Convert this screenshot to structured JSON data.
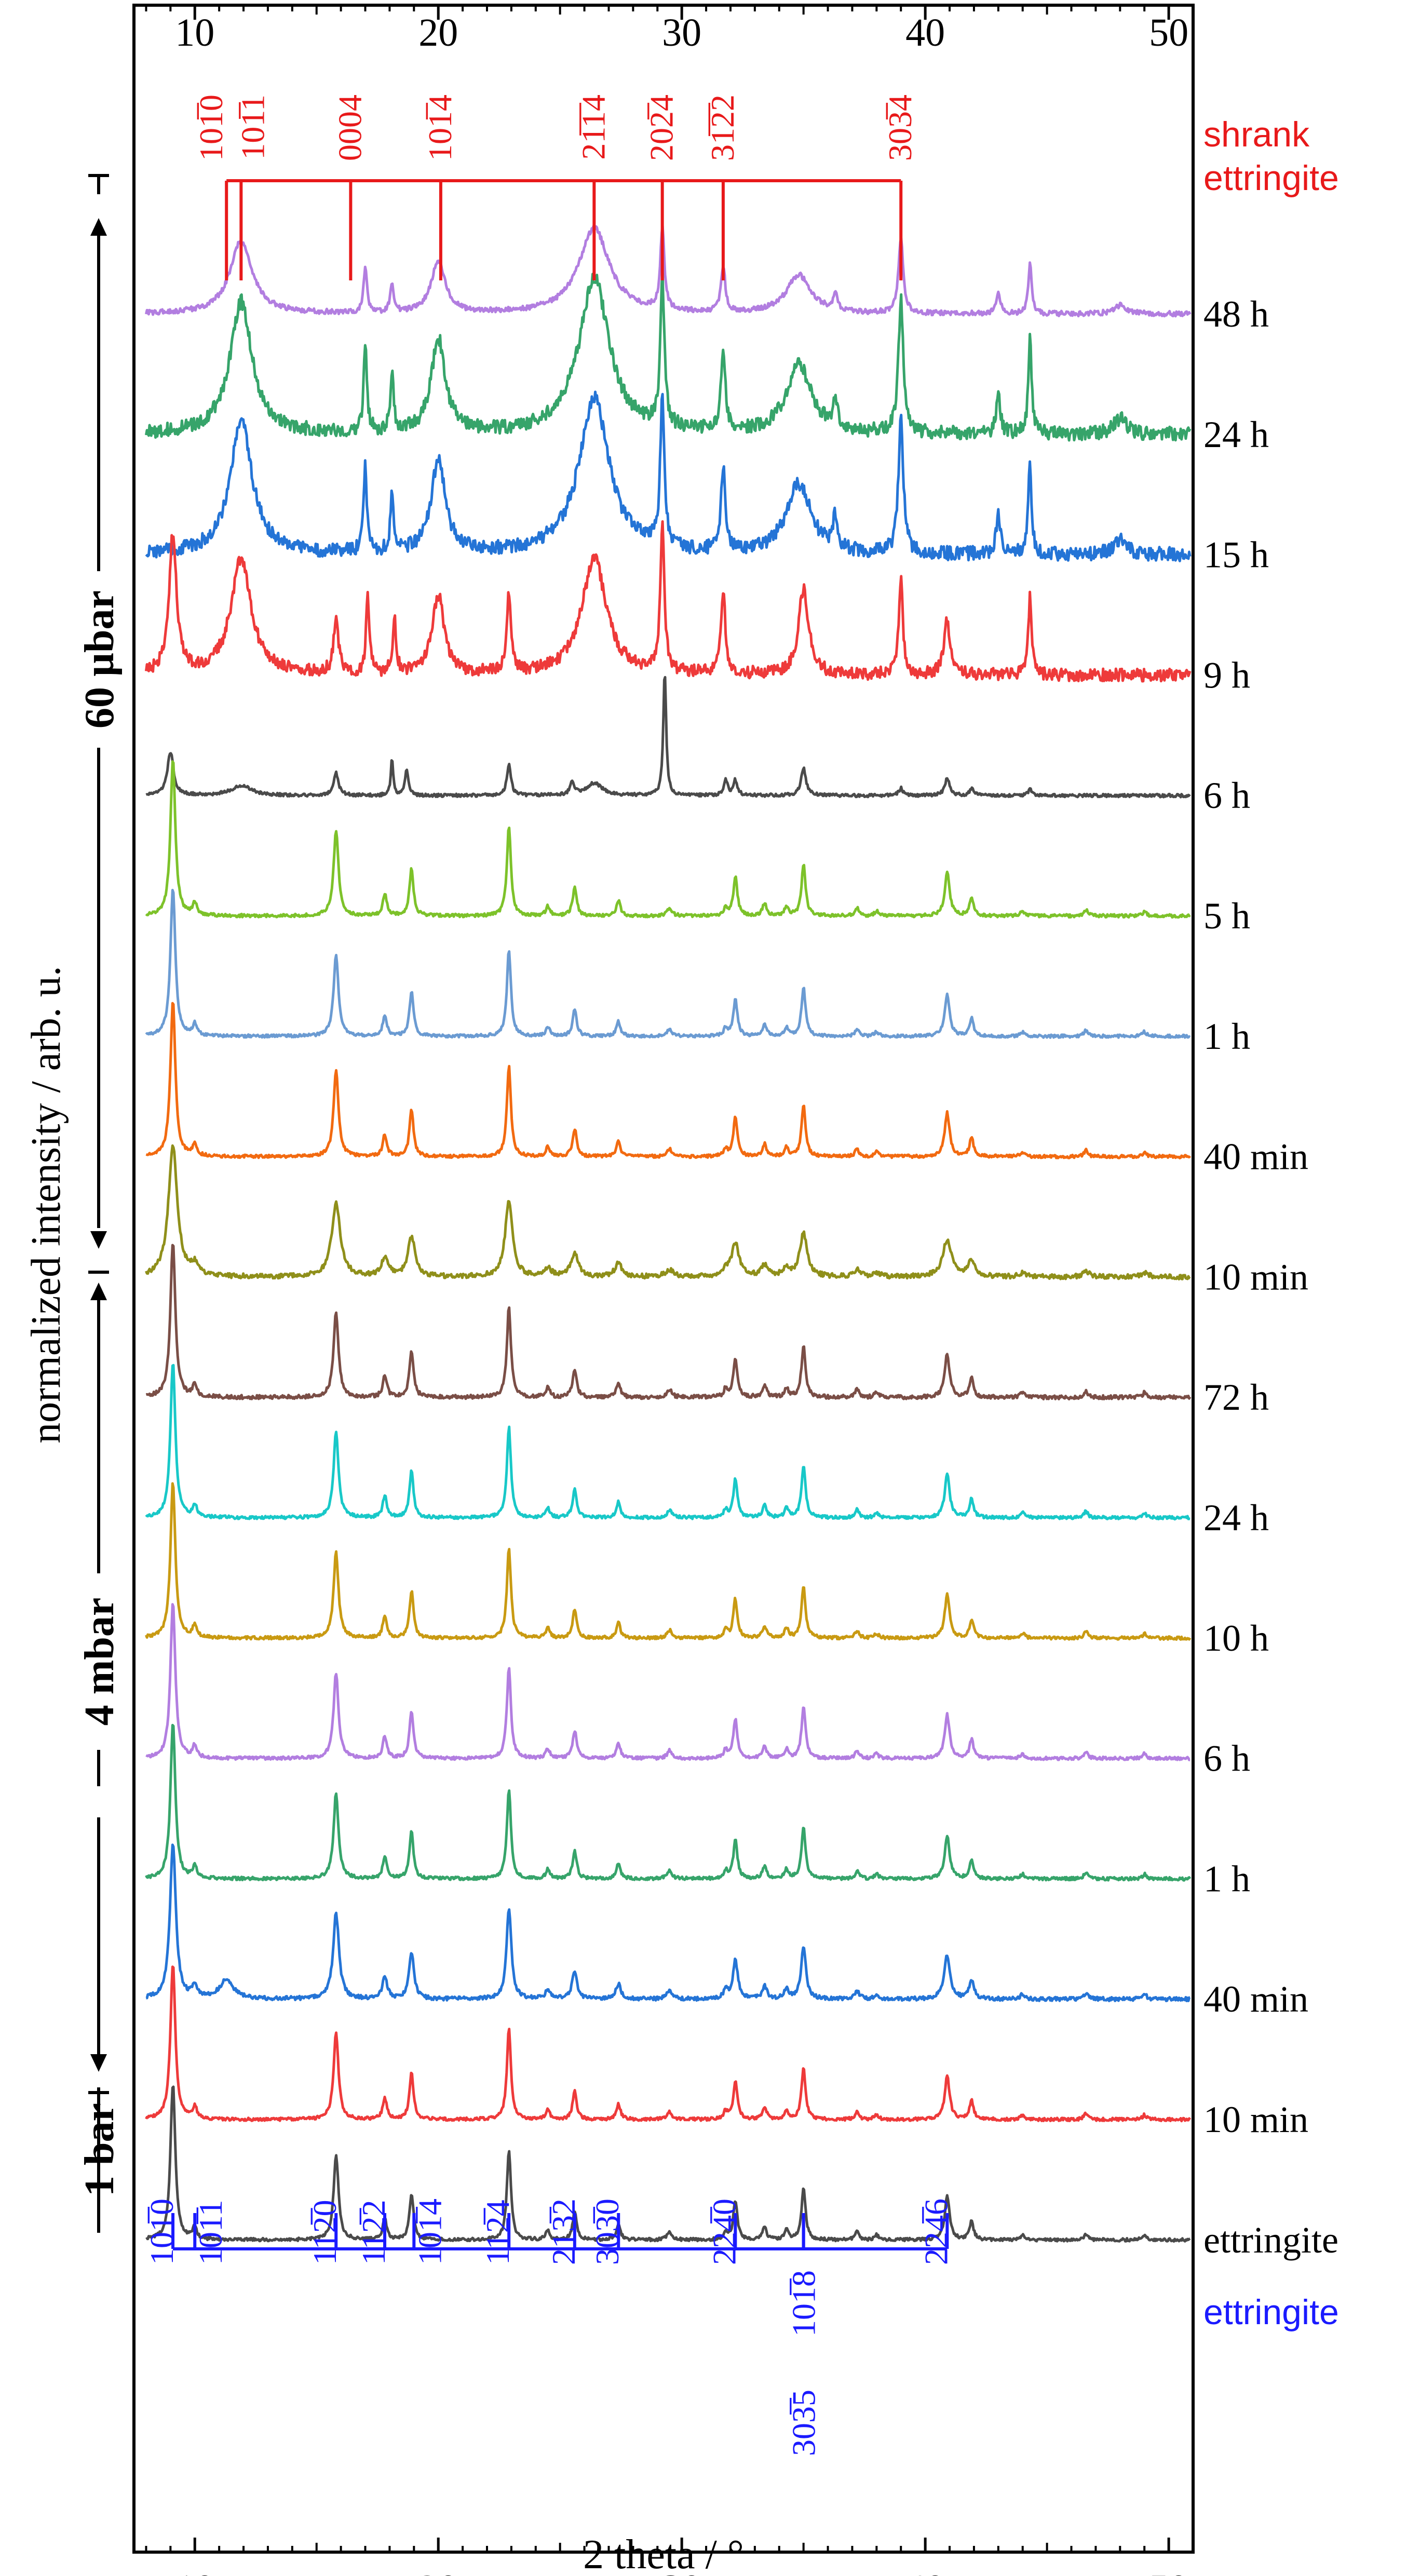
{
  "chart_data": {
    "type": "line",
    "xlabel": "2 theta / °",
    "ylabel": "normalized intensity / arb. u.",
    "xlim": [
      7.5,
      51
    ],
    "x_ticks": [
      10,
      20,
      30,
      40,
      50
    ],
    "x_tick_labels": [
      "10",
      "20",
      "30",
      "40",
      "50"
    ],
    "pressure_labels": [
      {
        "text": "60 µbar",
        "range_from": "10 min",
        "range_to": "48 h"
      },
      {
        "text": "4 mbar",
        "range_from": "72 h",
        "range_to": "10 min"
      },
      {
        "text": "1 bar",
        "range_from": "10 min",
        "range_to": "10 min"
      }
    ],
    "series": [
      {
        "name": "48 h",
        "color": "#b27ee0",
        "group": "60 µbar",
        "profile": "shrunk",
        "scale": 0.55,
        "noise": 0.06
      },
      {
        "name": "24 h",
        "color": "#36a46a",
        "group": "60 µbar",
        "profile": "shrunk",
        "scale": 1.0,
        "noise": 0.09
      },
      {
        "name": "15 h",
        "color": "#2474d6",
        "group": "60 µbar",
        "profile": "shrunk",
        "scale": 1.0,
        "noise": 0.09
      },
      {
        "name": "9 h",
        "color": "#ee3a3a",
        "group": "60 µbar",
        "profile": "mixed",
        "scale": 1.0,
        "noise": 0.08
      },
      {
        "name": "6 h",
        "color": "#4a4a4a",
        "group": "60 µbar",
        "profile": "six",
        "scale": 0.8,
        "noise": 0.025
      },
      {
        "name": "5 h",
        "color": "#7dc22a",
        "group": "60 µbar",
        "profile": "ett",
        "scale": 1.0,
        "noise": 0.02
      },
      {
        "name": "1 h",
        "color": "#6b9bd2",
        "group": "60 µbar",
        "profile": "ett",
        "scale": 0.95,
        "noise": 0.02
      },
      {
        "name": "40 min",
        "color": "#f26a10",
        "group": "60 µbar",
        "profile": "ett",
        "scale": 1.0,
        "noise": 0.02
      },
      {
        "name": "10 min",
        "color": "#8f8f1a",
        "group": "60 µbar",
        "profile": "ett_broad",
        "scale": 1.0,
        "noise": 0.03
      },
      {
        "name": "72 h",
        "color": "#7a4e46",
        "group": "4 mbar",
        "profile": "ett",
        "scale": 1.0,
        "noise": 0.025
      },
      {
        "name": "24 h",
        "color": "#18c8c8",
        "group": "4 mbar",
        "profile": "ett",
        "scale": 1.0,
        "noise": 0.02
      },
      {
        "name": "10 h",
        "color": "#c99a12",
        "group": "4 mbar",
        "profile": "ett",
        "scale": 1.0,
        "noise": 0.02
      },
      {
        "name": "6 h",
        "color": "#b27ee0",
        "group": "4 mbar",
        "profile": "ett",
        "scale": 1.0,
        "noise": 0.02
      },
      {
        "name": "1 h",
        "color": "#36a46a",
        "group": "4 mbar",
        "profile": "ett",
        "scale": 1.0,
        "noise": 0.02
      },
      {
        "name": "40 min",
        "color": "#2474d6",
        "group": "4 mbar",
        "profile": "ett_amorph",
        "scale": 1.0,
        "noise": 0.025
      },
      {
        "name": "10 min",
        "color": "#ee3a3a",
        "group": "1 bar",
        "profile": "ett",
        "scale": 1.0,
        "noise": 0.02
      },
      {
        "name": "ettringite",
        "color": "#4a4a4a",
        "group": "reference",
        "profile": "ett_ref",
        "scale": 1.0,
        "noise": 0.02
      }
    ],
    "shrank_ettringite": {
      "label_line1": "shrank",
      "label_line2": "ettringite",
      "color": "#e8191a",
      "reflections": [
        {
          "hkl": "101̅0",
          "x": 11.3
        },
        {
          "hkl": "101̅1",
          "x": 11.9
        },
        {
          "hkl": "0004",
          "x": 16.4
        },
        {
          "hkl": "101̅4",
          "x": 20.1
        },
        {
          "hkl": "21̅1̅4",
          "x": 26.4
        },
        {
          "hkl": "202̅4",
          "x": 29.2
        },
        {
          "hkl": "31̅2̅2",
          "x": 31.7
        },
        {
          "hkl": "303̅4",
          "x": 39.0
        }
      ]
    },
    "ettringite_reference": {
      "label": "ettringite",
      "color": "#1a1aff",
      "reflections": [
        {
          "hkl": "101̅0",
          "x": 9.1
        },
        {
          "hkl": "101̅1",
          "x": 10.0
        },
        {
          "hkl": "112̅0",
          "x": 15.8
        },
        {
          "hkl": "112̅2",
          "x": 17.8
        },
        {
          "hkl": "101̅4",
          "x": 19.0
        },
        {
          "hkl": "112̅4",
          "x": 22.9
        },
        {
          "hkl": "213̅2",
          "x": 25.6
        },
        {
          "hkl": "303̅0",
          "x": 27.4
        },
        {
          "hkl": "224̅0",
          "x": 32.2
        },
        {
          "hkl": "303̅5",
          "x": 35.0
        },
        {
          "hkl": "101̅8",
          "x": 35.0
        },
        {
          "hkl": "224̅6",
          "x": 40.9
        }
      ]
    }
  }
}
